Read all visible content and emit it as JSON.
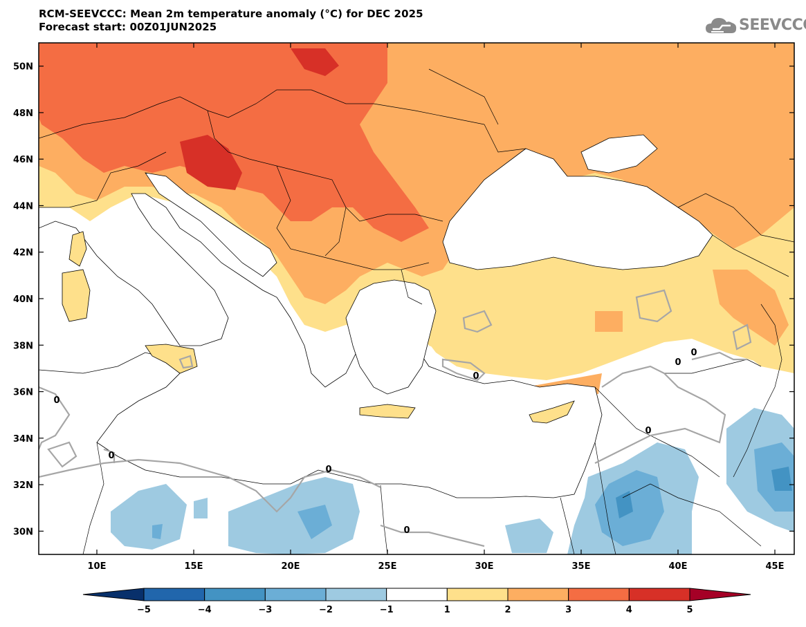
{
  "header": {
    "title_line1": "RCM-SEEVCCC: Mean 2m temperature anomaly (°C) for DEC 2025",
    "title_line2": "Forecast start: 00Z01JUN2025"
  },
  "logo": {
    "text": "SEEVCCC",
    "icon": "cloud-icon"
  },
  "map": {
    "lon_range": [
      7,
      46
    ],
    "lat_range": [
      29,
      51
    ],
    "lat_ticks": [
      "50N",
      "48N",
      "46N",
      "44N",
      "42N",
      "40N",
      "38N",
      "36N",
      "34N",
      "32N",
      "30N"
    ],
    "lon_ticks": [
      "10E",
      "15E",
      "20E",
      "25E",
      "30E",
      "35E",
      "40E",
      "45E"
    ],
    "contour_label": "0"
  },
  "colorbar": {
    "labels": [
      "−5",
      "−4",
      "−3",
      "−2",
      "−1",
      "1",
      "2",
      "3",
      "4",
      "5"
    ],
    "colors": [
      "#08306b",
      "#2166ac",
      "#4393c3",
      "#6baed6",
      "#9ecae1",
      "#ffffff",
      "#fee08b",
      "#fdae61",
      "#f46d43",
      "#d73027",
      "#a50026"
    ]
  }
}
